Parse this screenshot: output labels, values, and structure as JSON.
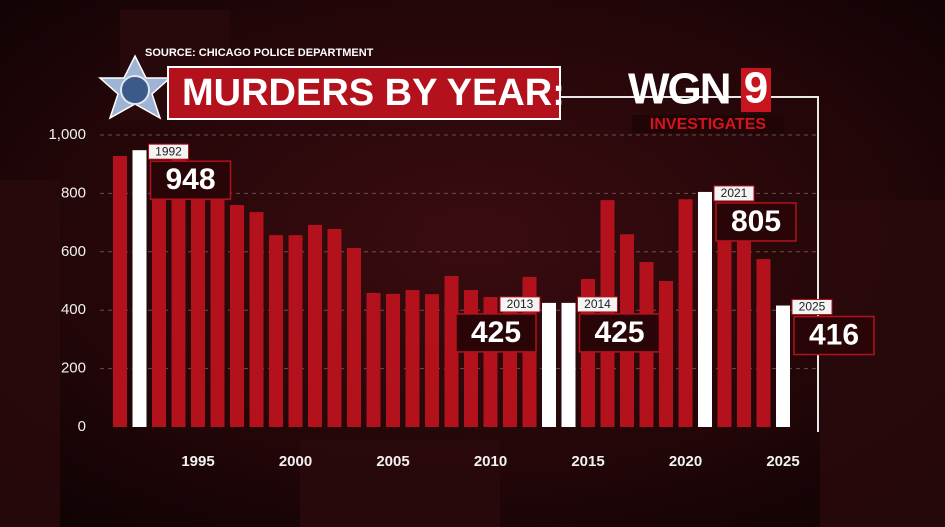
{
  "chart_data": {
    "type": "bar",
    "title": "MURDERS BY YEAR:",
    "source": "SOURCE: CHICAGO POLICE DEPARTMENT",
    "x": [
      1991,
      1992,
      1993,
      1994,
      1995,
      1996,
      1997,
      1998,
      1999,
      2000,
      2001,
      2002,
      2003,
      2004,
      2005,
      2006,
      2007,
      2008,
      2009,
      2010,
      2011,
      2012,
      2013,
      2014,
      2015,
      2016,
      2017,
      2018,
      2019,
      2020,
      2021,
      2022,
      2023,
      2024,
      2025
    ],
    "values": [
      928,
      948,
      855,
      930,
      830,
      800,
      760,
      736,
      657,
      657,
      692,
      678,
      613,
      459,
      456,
      469,
      455,
      517,
      469,
      445,
      440,
      514,
      425,
      425,
      507,
      777,
      660,
      565,
      500,
      780,
      805,
      719,
      640,
      575,
      416
    ],
    "color": "#b3121d",
    "highlight_color": "#ffffff",
    "highlighted": [
      1992,
      2013,
      2014,
      2021,
      2025
    ],
    "xlim": [
      1990,
      2026
    ],
    "xticks": [
      1995,
      2000,
      2005,
      2010,
      2015,
      2020,
      2025
    ],
    "ylim": [
      0,
      1000
    ],
    "yticks": [
      0,
      200,
      400,
      600,
      800,
      {
        "value": 1000,
        "label": "1,000"
      }
    ],
    "grid": true
  },
  "logo": {
    "name": "WGN",
    "channel": "9",
    "tagline": "INVESTIGATES"
  }
}
